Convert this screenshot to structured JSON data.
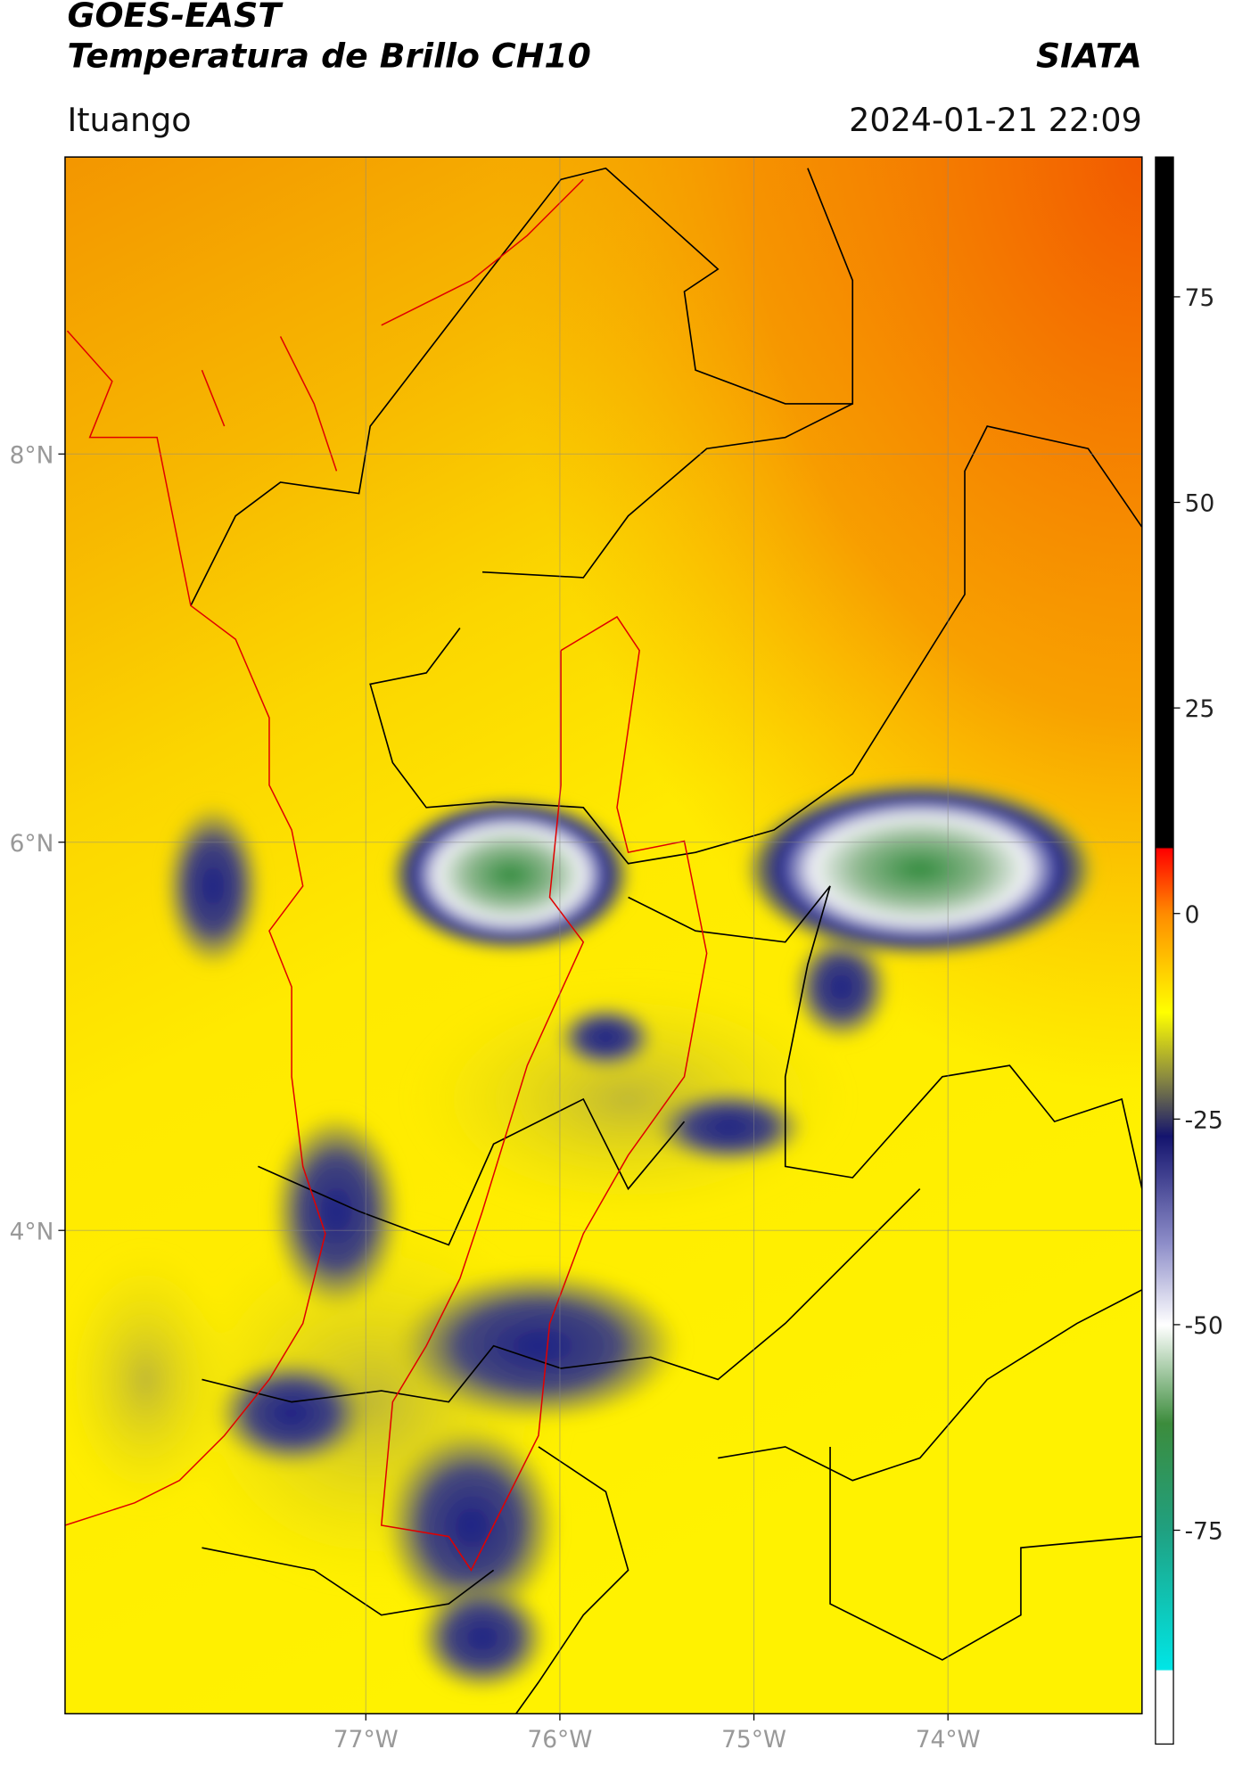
{
  "header": {
    "title": "GOES-EAST",
    "subtitle": "Temperatura de Brillo CH10",
    "source": "SIATA",
    "location": "Ituango",
    "datetime": "2024-01-21 22:09"
  },
  "map": {
    "xlim": [
      -78.55,
      -73.0
    ],
    "ylim": [
      1.51,
      9.53
    ],
    "xticks": [
      {
        "value": -77,
        "label": "77°W"
      },
      {
        "value": -76,
        "label": "76°W"
      },
      {
        "value": -75,
        "label": "75°W"
      },
      {
        "value": -74,
        "label": "74°W"
      }
    ],
    "yticks": [
      {
        "value": 8,
        "label": "8°N"
      },
      {
        "value": 6,
        "label": "6°N"
      },
      {
        "value": 4,
        "label": "4°N"
      }
    ],
    "grid": true
  },
  "colorbar": {
    "lim": [
      -101,
      92
    ],
    "ticks": [
      75,
      50,
      25,
      0,
      -25,
      -50,
      -75
    ]
  }
}
